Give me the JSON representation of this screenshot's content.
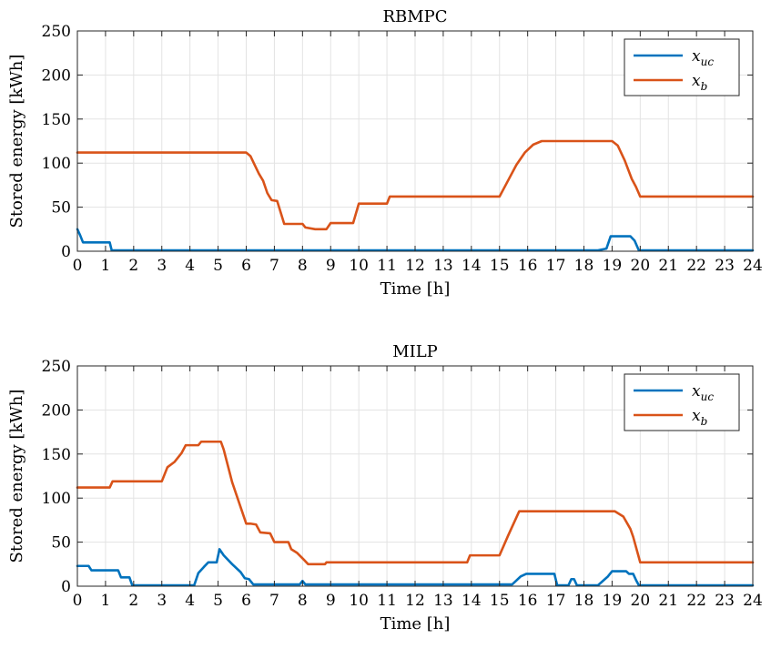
{
  "chart_data": [
    {
      "type": "line",
      "title": "RBMPC",
      "xlabel": "Time [h]",
      "ylabel": "Stored energy [kWh]",
      "xlim": [
        0,
        24
      ],
      "ylim": [
        0,
        250
      ],
      "x_ticks": [
        0,
        1,
        2,
        3,
        4,
        5,
        6,
        7,
        8,
        9,
        10,
        11,
        12,
        13,
        14,
        15,
        16,
        17,
        18,
        19,
        20,
        21,
        22,
        23,
        24
      ],
      "y_ticks": [
        0,
        50,
        100,
        150,
        200,
        250
      ],
      "grid": true,
      "legend_position": "top-right",
      "series": [
        {
          "name": "x_uc",
          "legend_base": "x",
          "legend_sub": "uc",
          "color": "#0072bd",
          "x": [
            0,
            0.1,
            0.2,
            1.15,
            1.22,
            18.5,
            18.8,
            18.95,
            19.65,
            19.8,
            19.95,
            24
          ],
          "y": [
            25,
            18,
            10,
            10,
            1,
            1,
            3,
            17,
            17,
            12,
            1,
            1
          ]
        },
        {
          "name": "x_b",
          "legend_base": "x",
          "legend_sub": "b",
          "color": "#d95319",
          "x": [
            0,
            6.0,
            6.15,
            6.3,
            6.45,
            6.6,
            6.75,
            6.9,
            7.1,
            7.35,
            8.0,
            8.1,
            8.45,
            8.85,
            9.0,
            9.8,
            10.0,
            11.0,
            11.1,
            15.0,
            15.3,
            15.6,
            15.9,
            16.2,
            16.5,
            18.8,
            19.0,
            19.2,
            19.45,
            19.7,
            19.85,
            20.0,
            24.0
          ],
          "y": [
            112,
            112,
            108,
            98,
            88,
            80,
            66,
            58,
            57,
            31,
            31,
            27,
            25,
            25,
            32,
            32,
            54,
            54,
            62,
            62,
            80,
            98,
            112,
            121,
            125,
            125,
            125,
            120,
            103,
            82,
            73,
            62,
            62
          ]
        }
      ]
    },
    {
      "type": "line",
      "title": "MILP",
      "xlabel": "Time [h]",
      "ylabel": "Stored energy [kWh]",
      "xlim": [
        0,
        24
      ],
      "ylim": [
        0,
        250
      ],
      "x_ticks": [
        0,
        1,
        2,
        3,
        4,
        5,
        6,
        7,
        8,
        9,
        10,
        11,
        12,
        13,
        14,
        15,
        16,
        17,
        18,
        19,
        20,
        21,
        22,
        23,
        24
      ],
      "y_ticks": [
        0,
        50,
        100,
        150,
        200,
        250
      ],
      "grid": true,
      "legend_position": "top-right",
      "series": [
        {
          "name": "x_uc",
          "legend_base": "x",
          "legend_sub": "uc",
          "color": "#0072bd",
          "x": [
            0,
            0.4,
            0.5,
            1.45,
            1.55,
            1.85,
            1.95,
            4.15,
            4.3,
            4.5,
            4.65,
            4.95,
            5.05,
            5.2,
            5.5,
            5.8,
            5.95,
            6.1,
            6.25,
            7.9,
            8.0,
            8.1,
            15.45,
            15.75,
            15.95,
            16.95,
            17.05,
            17.45,
            17.55,
            17.65,
            17.75,
            18.5,
            18.85,
            19.0,
            19.5,
            19.6,
            19.75,
            19.85,
            19.95,
            24
          ],
          "y": [
            23,
            23,
            18,
            18,
            10,
            10,
            1,
            1,
            15,
            22,
            27,
            27,
            42,
            35,
            25,
            16,
            9,
            8,
            2,
            2,
            6,
            2,
            2,
            11,
            14,
            14,
            1,
            1,
            8,
            8,
            1,
            1,
            11,
            17,
            17,
            14,
            14,
            7,
            1,
            1
          ]
        },
        {
          "name": "x_b",
          "legend_base": "x",
          "legend_sub": "b",
          "color": "#d95319",
          "x": [
            0,
            1.15,
            1.25,
            3.0,
            3.2,
            3.45,
            3.7,
            3.85,
            4.3,
            4.4,
            5.1,
            5.2,
            5.5,
            6.0,
            6.15,
            6.35,
            6.5,
            6.85,
            7.0,
            7.5,
            7.6,
            7.8,
            8.05,
            8.2,
            8.8,
            8.85,
            13.85,
            13.95,
            15.0,
            15.3,
            15.7,
            19.1,
            19.4,
            19.65,
            19.75,
            20.0,
            24.0
          ],
          "y": [
            112,
            112,
            119,
            119,
            135,
            141,
            151,
            160,
            160,
            164,
            164,
            155,
            118,
            71,
            71,
            70,
            61,
            60,
            50,
            50,
            42,
            38,
            30,
            25,
            25,
            27,
            27,
            35,
            35,
            57,
            85,
            85,
            79,
            65,
            56,
            27,
            27
          ]
        }
      ]
    }
  ]
}
